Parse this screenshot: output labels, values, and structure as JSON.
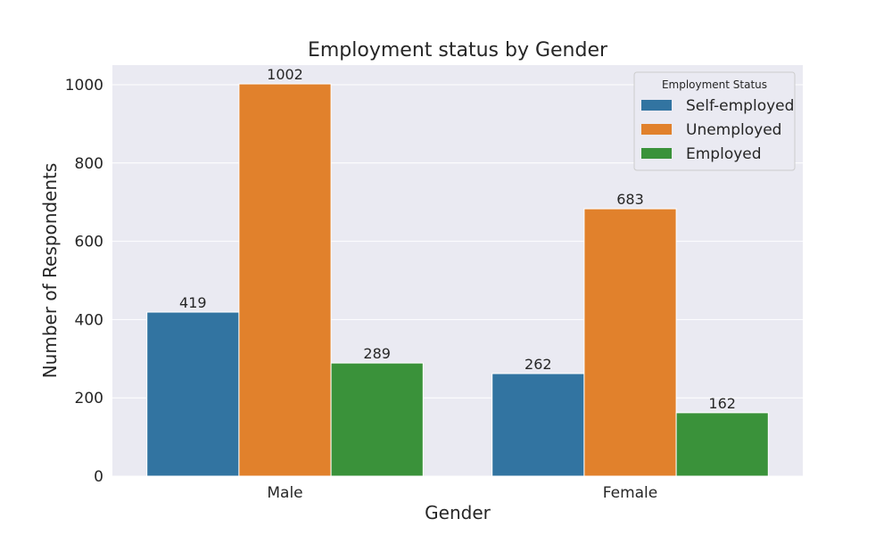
{
  "chart_data": {
    "type": "bar",
    "title": "Employment status by Gender",
    "xlabel": "Gender",
    "ylabel": "Number of Respondents",
    "categories": [
      "Male",
      "Female"
    ],
    "ylim": [
      0,
      1050
    ],
    "yticks": [
      0,
      200,
      400,
      600,
      800,
      1000
    ],
    "grid": true,
    "legend": {
      "title": "Employment Status",
      "placement": "top-right"
    },
    "series": [
      {
        "name": "Self-employed",
        "color": "#3274a1",
        "values": [
          419,
          262
        ]
      },
      {
        "name": "Unemployed",
        "color": "#e1812c",
        "values": [
          1002,
          683
        ]
      },
      {
        "name": "Employed",
        "color": "#3a923a",
        "values": [
          289,
          162
        ]
      }
    ],
    "colors": {
      "plot_background": "#eaeaf2",
      "grid": "#ffffff"
    }
  }
}
